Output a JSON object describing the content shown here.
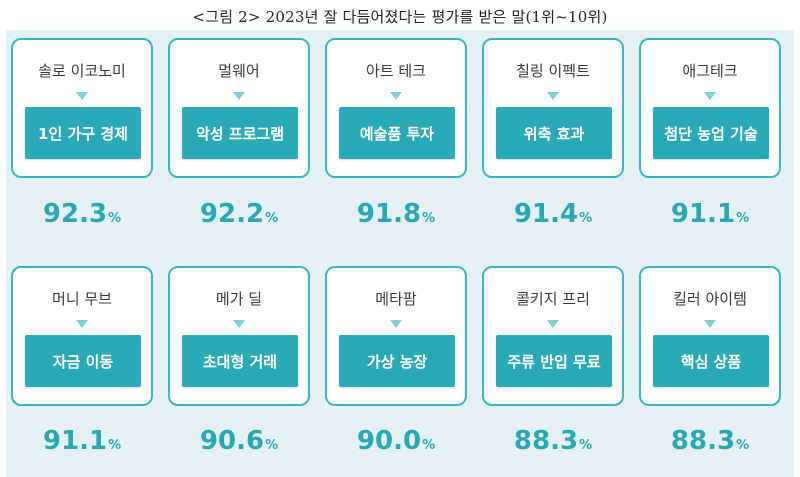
{
  "caption": "<그림 2> 2023년 잘 다듬어졌다는 평가를 받은 말(1위~10위)",
  "unit": "%",
  "items": [
    {
      "term": "솔로 이코노미",
      "meaning": "1인 가구 경제",
      "value": "92.3"
    },
    {
      "term": "멀웨어",
      "meaning": "악성 프로그램",
      "value": "92.2"
    },
    {
      "term": "아트 테크",
      "meaning": "예술품 투자",
      "value": "91.8"
    },
    {
      "term": "칠링 이펙트",
      "meaning": "위축 효과",
      "value": "91.4"
    },
    {
      "term": "애그테크",
      "meaning": "첨단 농업 기술",
      "value": "91.1"
    },
    {
      "term": "머니 무브",
      "meaning": "자금 이동",
      "value": "91.1"
    },
    {
      "term": "메가 딜",
      "meaning": "초대형 거래",
      "value": "90.6"
    },
    {
      "term": "메타팜",
      "meaning": "가상 농장",
      "value": "90.0"
    },
    {
      "term": "콜키지 프리",
      "meaning": "주류 반입 무료",
      "value": "88.3"
    },
    {
      "term": "킬러 아이템",
      "meaning": "핵심 상품",
      "value": "88.3"
    }
  ]
}
